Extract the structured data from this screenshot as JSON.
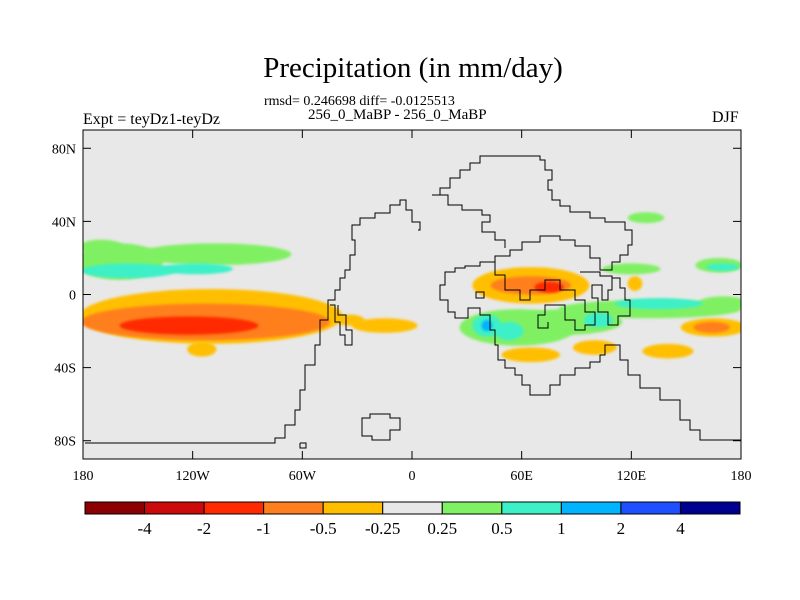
{
  "chart_data": {
    "type": "heatmap",
    "title": "Precipitation (in mm/day)",
    "stats": "rmsd= 0.246698 diff= -0.0125513",
    "subtitle": "256_0_MaBP - 256_0_MaBP",
    "left_label": "Expt = teyDz1-teyDz",
    "right_label": "DJF",
    "x_range": [
      -180,
      180
    ],
    "y_range": [
      -90,
      90
    ],
    "x_ticks": [
      {
        "value": -180,
        "label": "180"
      },
      {
        "value": -120,
        "label": "120W"
      },
      {
        "value": -60,
        "label": "60W"
      },
      {
        "value": 0,
        "label": "0"
      },
      {
        "value": 60,
        "label": "60E"
      },
      {
        "value": 120,
        "label": "120E"
      },
      {
        "value": 180,
        "label": "180"
      }
    ],
    "y_ticks": [
      {
        "value": 80,
        "label": "80N"
      },
      {
        "value": 40,
        "label": "40N"
      },
      {
        "value": 0,
        "label": "0"
      },
      {
        "value": -40,
        "label": "40S"
      },
      {
        "value": -80,
        "label": "80S"
      }
    ],
    "colorbar": {
      "labels": [
        "-4",
        "-2",
        "-1",
        "-0.5",
        "-0.25",
        "0.25",
        "0.5",
        "1",
        "2",
        "4"
      ],
      "colors": [
        "#8b0000",
        "#cd0a0a",
        "#ff2a00",
        "#ff7f1e",
        "#ffbf00",
        "#e8e8e8",
        "#80f064",
        "#3cf0c8",
        "#00b4ff",
        "#1e50ff",
        "#000090"
      ]
    },
    "background_color": "#e8e8e8",
    "regions": [
      {
        "level": "0.25",
        "color": "#80f064",
        "center": [
          -160,
          18
        ],
        "radius": [
          24,
          10
        ]
      },
      {
        "level": "0.25",
        "color": "#80f064",
        "center": [
          -108,
          22
        ],
        "radius": [
          42,
          6
        ]
      },
      {
        "level": "0.25",
        "color": "#80f064",
        "center": [
          -170,
          26
        ],
        "radius": [
          12,
          4
        ]
      },
      {
        "level": "0.5",
        "color": "#3cf0c8",
        "center": [
          -155,
          13
        ],
        "radius": [
          26,
          4
        ]
      },
      {
        "level": "0.5",
        "color": "#3cf0c8",
        "center": [
          -118,
          14
        ],
        "radius": [
          20,
          3
        ]
      },
      {
        "level": "-0.25",
        "color": "#ffbf00",
        "center": [
          -110,
          -12
        ],
        "radius": [
          72,
          15
        ]
      },
      {
        "level": "-0.5",
        "color": "#ff7f1e",
        "center": [
          -113,
          -15
        ],
        "radius": [
          68,
          10
        ]
      },
      {
        "level": "-1",
        "color": "#ff2a00",
        "center": [
          -122,
          -17
        ],
        "radius": [
          38,
          5
        ]
      },
      {
        "level": "-0.25",
        "color": "#ffbf00",
        "center": [
          -115,
          -30
        ],
        "radius": [
          8,
          4
        ]
      },
      {
        "level": "-0.25",
        "color": "#ffbf00",
        "center": [
          -15,
          -17
        ],
        "radius": [
          18,
          4
        ]
      },
      {
        "level": "-0.25",
        "color": "#ffbf00",
        "center": [
          -34,
          -14
        ],
        "radius": [
          8,
          3
        ]
      },
      {
        "level": "-0.25",
        "color": "#ffbf00",
        "center": [
          65,
          5
        ],
        "radius": [
          32,
          10
        ]
      },
      {
        "level": "-0.5",
        "color": "#ff7f1e",
        "center": [
          65,
          5
        ],
        "radius": [
          22,
          5
        ]
      },
      {
        "level": "-1",
        "color": "#ff2a00",
        "center": [
          75,
          4
        ],
        "radius": [
          8,
          3
        ]
      },
      {
        "level": "0.25",
        "color": "#80f064",
        "center": [
          58,
          -18
        ],
        "radius": [
          32,
          10
        ]
      },
      {
        "level": "0.25",
        "color": "#80f064",
        "center": [
          85,
          -15
        ],
        "radius": [
          30,
          7
        ]
      },
      {
        "level": "0.25",
        "color": "#80f064",
        "center": [
          130,
          -8
        ],
        "radius": [
          50,
          5
        ]
      },
      {
        "level": "0.25",
        "color": "#80f064",
        "center": [
          170,
          -5
        ],
        "radius": [
          14,
          4
        ]
      },
      {
        "level": "0.5",
        "color": "#3cf0c8",
        "center": [
          41,
          -17
        ],
        "radius": [
          8,
          6
        ]
      },
      {
        "level": "0.5",
        "color": "#3cf0c8",
        "center": [
          53,
          -20
        ],
        "radius": [
          8,
          5
        ]
      },
      {
        "level": "0.5",
        "color": "#3cf0c8",
        "center": [
          135,
          -5
        ],
        "radius": [
          24,
          3
        ]
      },
      {
        "level": "0.5",
        "color": "#3cf0c8",
        "center": [
          102,
          -14
        ],
        "radius": [
          8,
          4
        ]
      },
      {
        "level": "1",
        "color": "#00b4ff",
        "center": [
          41,
          -17
        ],
        "radius": [
          3,
          3
        ]
      },
      {
        "level": "-0.25",
        "color": "#ffbf00",
        "center": [
          165,
          -18
        ],
        "radius": [
          18,
          5
        ]
      },
      {
        "level": "-0.5",
        "color": "#ff7f1e",
        "center": [
          164,
          -18
        ],
        "radius": [
          10,
          3
        ]
      },
      {
        "level": "-0.25",
        "color": "#ffbf00",
        "center": [
          140,
          -31
        ],
        "radius": [
          14,
          4
        ]
      },
      {
        "level": "-0.25",
        "color": "#ffbf00",
        "center": [
          100,
          -29
        ],
        "radius": [
          12,
          4
        ]
      },
      {
        "level": "-0.25",
        "color": "#ffbf00",
        "center": [
          65,
          -33
        ],
        "radius": [
          16,
          4
        ]
      },
      {
        "level": "-0.25",
        "color": "#ffbf00",
        "center": [
          122,
          6
        ],
        "radius": [
          4,
          4
        ]
      },
      {
        "level": "0.25",
        "color": "#80f064",
        "center": [
          128,
          42
        ],
        "radius": [
          10,
          3
        ]
      },
      {
        "level": "0.25",
        "color": "#80f064",
        "center": [
          120,
          14
        ],
        "radius": [
          16,
          3
        ]
      },
      {
        "level": "0.25",
        "color": "#80f064",
        "center": [
          168,
          16
        ],
        "radius": [
          13,
          4
        ]
      },
      {
        "level": "0.5",
        "color": "#3cf0c8",
        "center": [
          170,
          15
        ],
        "radius": [
          9,
          2
        ]
      }
    ]
  }
}
